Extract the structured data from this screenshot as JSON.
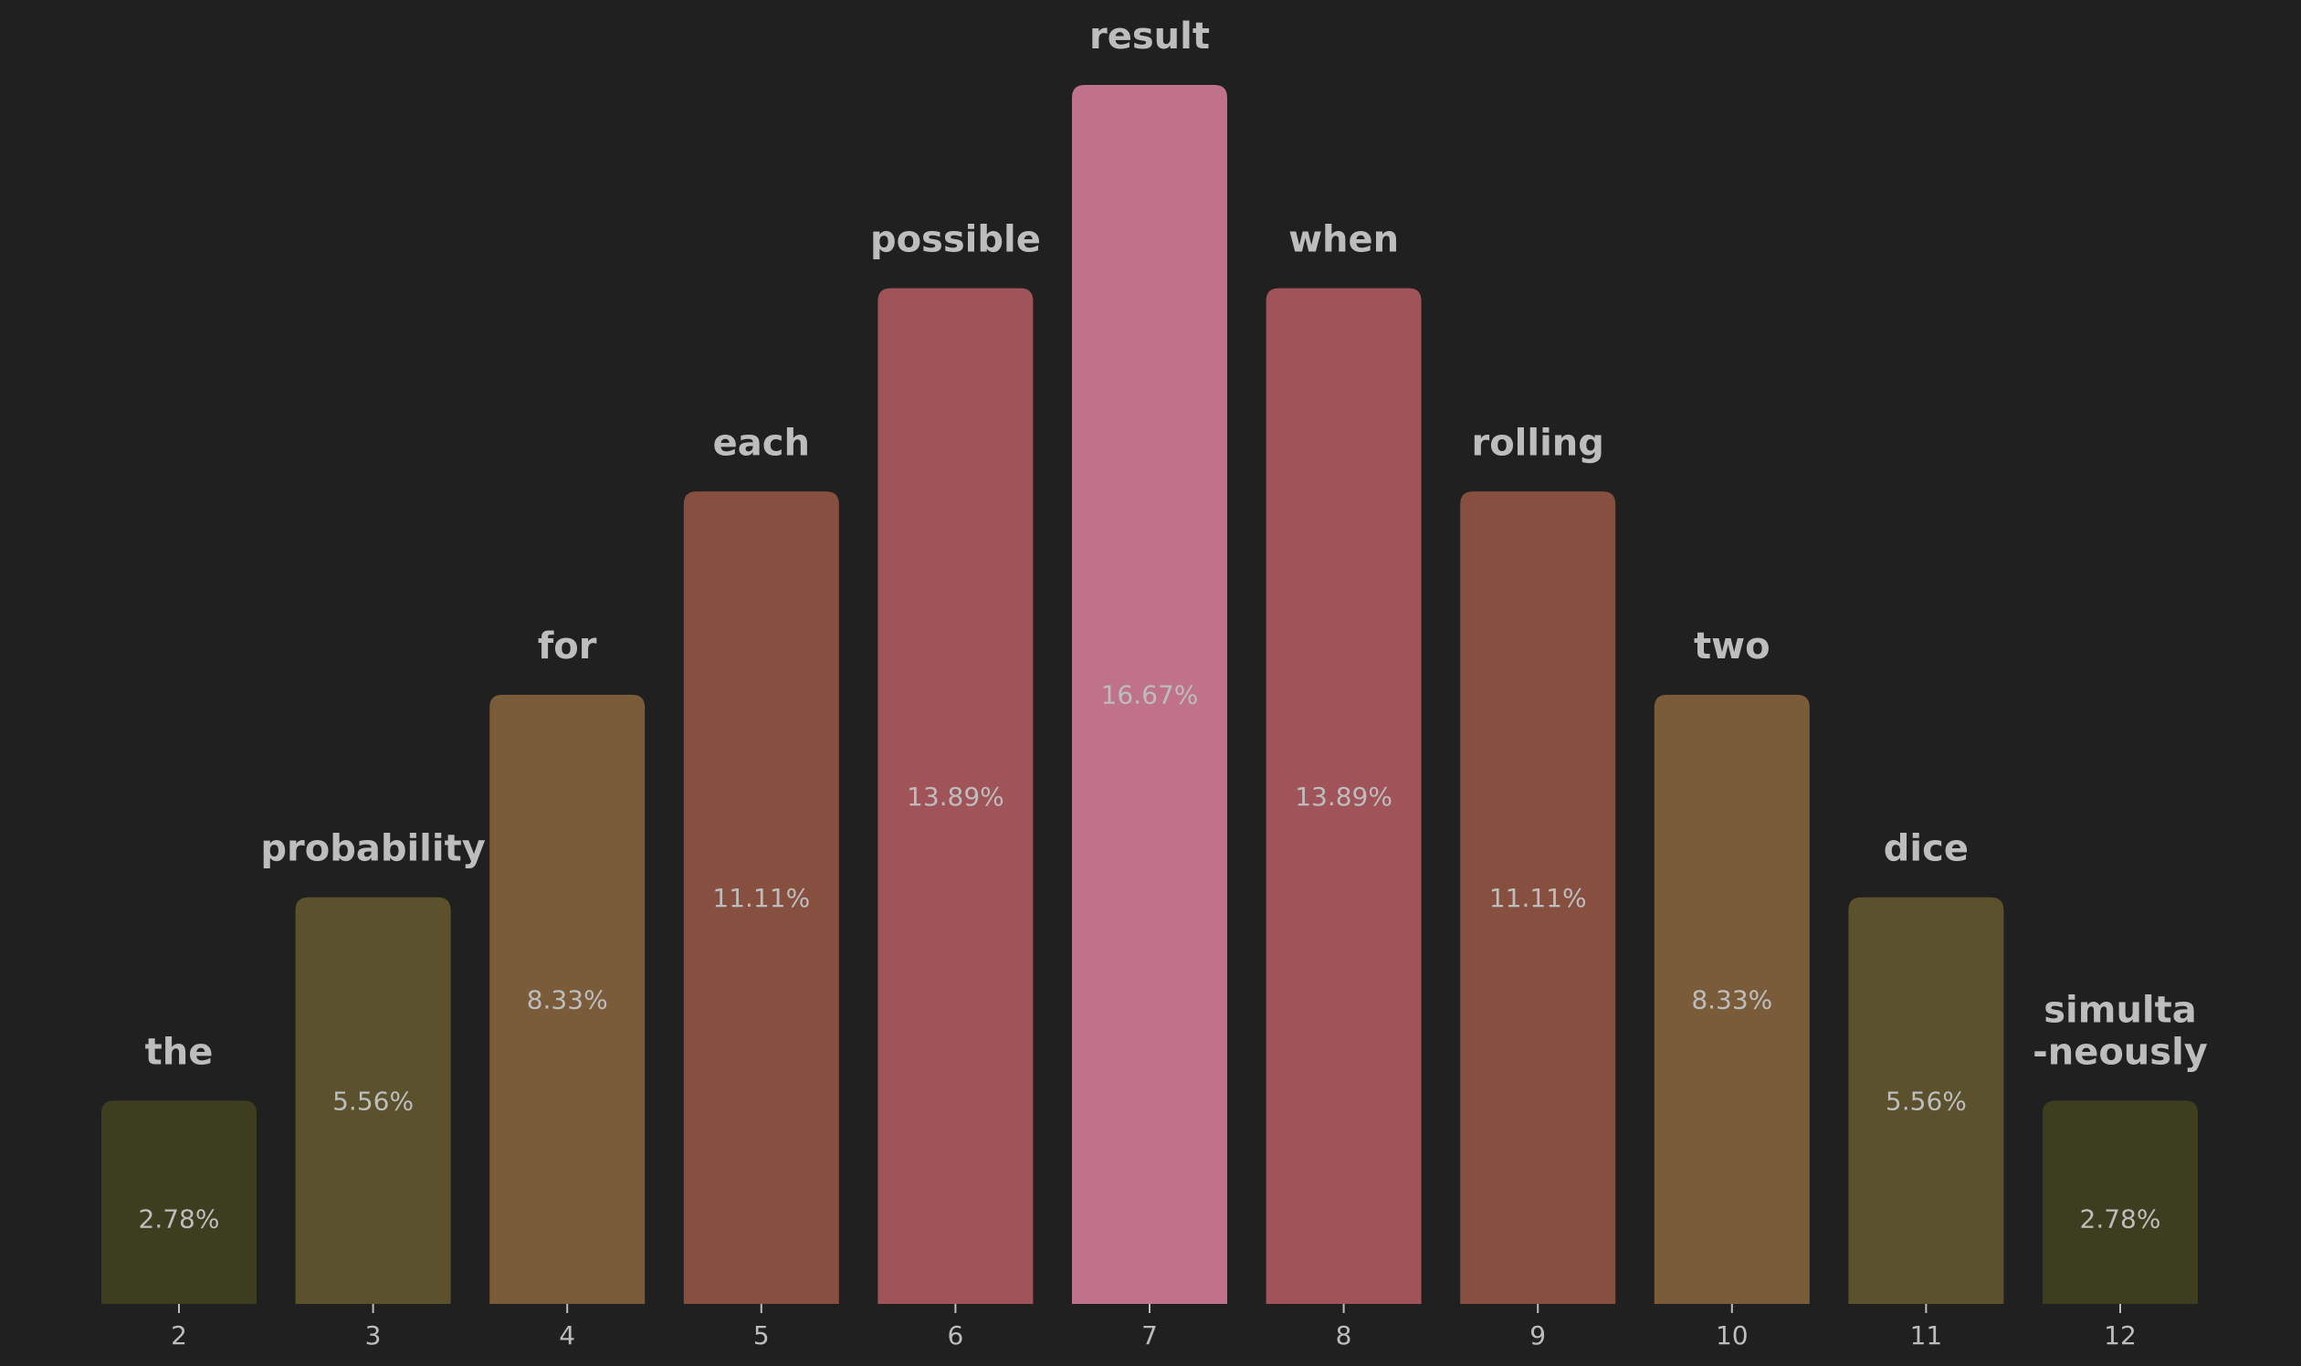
{
  "chart_data": {
    "type": "bar",
    "title": "",
    "xlabel": "",
    "ylabel": "",
    "ylim": [
      0,
      16.67
    ],
    "grid": false,
    "categories": [
      "2",
      "3",
      "4",
      "5",
      "6",
      "7",
      "8",
      "9",
      "10",
      "11",
      "12"
    ],
    "values": [
      2.78,
      5.56,
      8.33,
      11.11,
      13.89,
      16.67,
      13.89,
      11.11,
      8.33,
      5.56,
      2.78
    ],
    "value_labels": [
      "2.78%",
      "5.56%",
      "8.33%",
      "11.11%",
      "13.89%",
      "16.67%",
      "13.89%",
      "11.11%",
      "8.33%",
      "5.56%",
      "2.78%"
    ],
    "bar_labels": [
      [
        "the"
      ],
      [
        "probability"
      ],
      [
        "for"
      ],
      [
        "each"
      ],
      [
        "possible"
      ],
      [
        "result"
      ],
      [
        "when"
      ],
      [
        "rolling"
      ],
      [
        "two"
      ],
      [
        "dice"
      ],
      [
        "simulta",
        "-neously"
      ]
    ],
    "colors": [
      "#3d3d1f",
      "#5c512d",
      "#7a5c3a",
      "#874f40",
      "#a05359",
      "#bf7289",
      "#a05359",
      "#874f40",
      "#7a5c3a",
      "#5c512d",
      "#3d3d1f"
    ],
    "background": "#202020",
    "text_color": "#bdbdbd"
  }
}
